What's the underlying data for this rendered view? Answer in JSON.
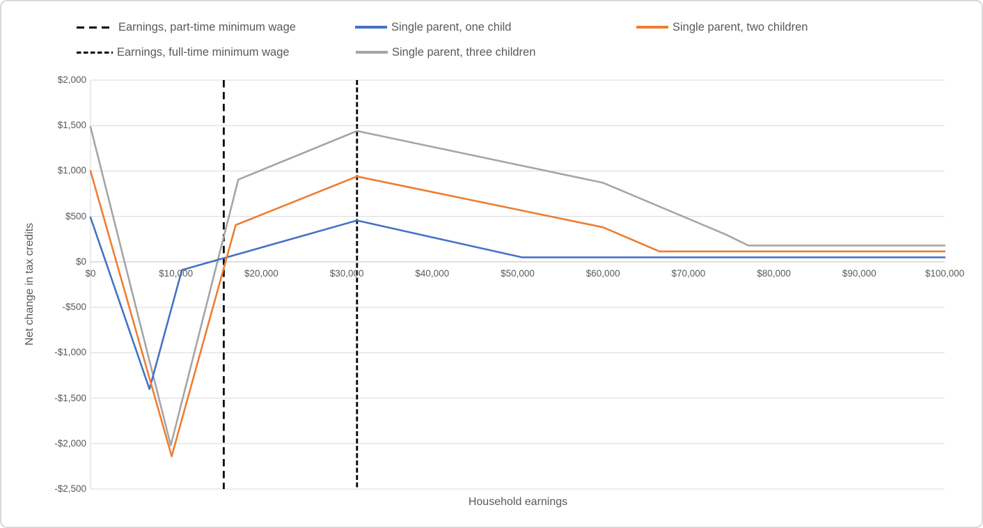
{
  "legend": {
    "items": [
      {
        "label": "Earnings, part-time minimum wage",
        "marker": "long-dash",
        "color": "#000000"
      },
      {
        "label": "Single parent, one child",
        "marker": "solid",
        "color": "#4472C4"
      },
      {
        "label": "Single parent, two children",
        "marker": "solid",
        "color": "#ED7D31"
      },
      {
        "label": "Earnings, full-time minimum wage",
        "marker": "short-dash",
        "color": "#000000"
      },
      {
        "label": "Single parent, three children",
        "marker": "solid",
        "color": "#A5A5A5"
      }
    ]
  },
  "chart_data": {
    "type": "line",
    "title": "",
    "legend_position": "top",
    "grid": "horizontal",
    "x_axis": {
      "title": "Household earnings",
      "min": 0,
      "max": 100000,
      "tick_step": 10000,
      "tick_labels": [
        "$0",
        "$10,000",
        "$20,000",
        "$30,000",
        "$40,000",
        "$50,000",
        "$60,000",
        "$70,000",
        "$80,000",
        "$90,000",
        "$100,000"
      ]
    },
    "y_axis": {
      "title": "Net change in tax credits",
      "min": -2500,
      "max": 2000,
      "tick_step": 500,
      "tick_labels": [
        "$2,000",
        "$1,500",
        "$1,000",
        "$500",
        "$0",
        "-$500",
        "-$1,000",
        "-$1,500",
        "-$2,000",
        "-$2,500"
      ]
    },
    "vlines": [
      {
        "name": "Earnings, part-time minimum wage",
        "x": 15600,
        "style": "long-dash",
        "color": "#000000"
      },
      {
        "name": "Earnings, full-time minimum wage",
        "x": 31200,
        "style": "short-dash",
        "color": "#000000"
      }
    ],
    "series": [
      {
        "name": "Single parent, one child",
        "color": "#4472C4",
        "points": [
          [
            0,
            490
          ],
          [
            6900,
            -1400
          ],
          [
            10700,
            -90
          ],
          [
            31200,
            455
          ],
          [
            50500,
            50
          ],
          [
            100000,
            50
          ]
        ]
      },
      {
        "name": "Single parent, two children",
        "color": "#ED7D31",
        "points": [
          [
            0,
            1000
          ],
          [
            9500,
            -2140
          ],
          [
            17000,
            405
          ],
          [
            31200,
            940
          ],
          [
            60000,
            380
          ],
          [
            66600,
            115
          ],
          [
            100000,
            115
          ]
        ]
      },
      {
        "name": "Single parent, three children",
        "color": "#A5A5A5",
        "points": [
          [
            0,
            1485
          ],
          [
            9400,
            -2020
          ],
          [
            17300,
            905
          ],
          [
            31200,
            1440
          ],
          [
            60000,
            870
          ],
          [
            74400,
            300
          ],
          [
            77000,
            180
          ],
          [
            100000,
            180
          ]
        ]
      }
    ]
  }
}
